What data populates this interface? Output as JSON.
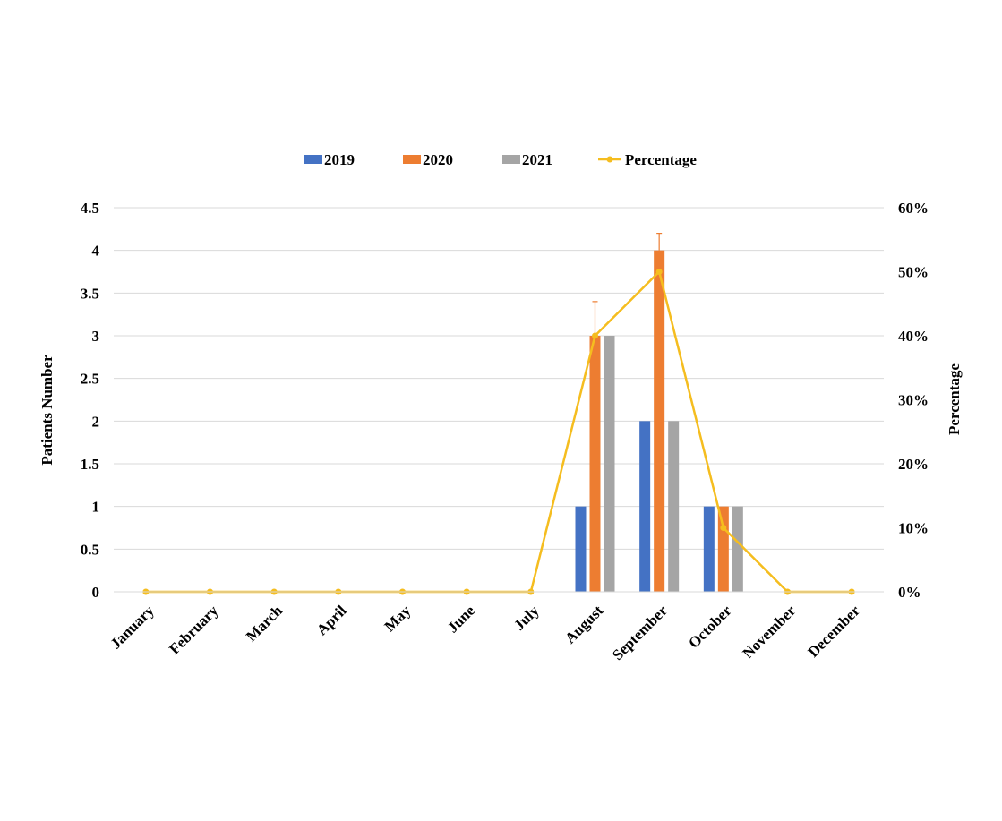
{
  "chart_data": {
    "type": "bar",
    "categories": [
      "January",
      "February",
      "March",
      "April",
      "May",
      "June",
      "July",
      "August",
      "September",
      "October",
      "November",
      "December"
    ],
    "series": [
      {
        "name": "2019",
        "type": "bar",
        "color": "#4472C4",
        "values": [
          0,
          0,
          0,
          0,
          0,
          0,
          0,
          1,
          2,
          1,
          0,
          0
        ]
      },
      {
        "name": "2020",
        "type": "bar",
        "color": "#ED7D31",
        "values": [
          0,
          0,
          0,
          0,
          0,
          0,
          0,
          3,
          4,
          1,
          0,
          0
        ],
        "error_plus": [
          0,
          0,
          0,
          0,
          0,
          0,
          0,
          0.4,
          0.2,
          0,
          0,
          0
        ]
      },
      {
        "name": "2021",
        "type": "bar",
        "color": "#A5A5A5",
        "values": [
          0,
          0,
          0,
          0,
          0,
          0,
          0,
          3,
          2,
          1,
          0,
          0
        ]
      },
      {
        "name": "Percentage",
        "type": "line",
        "axis": "right",
        "color": "#F5BD1F",
        "values": [
          0,
          0,
          0,
          0,
          0,
          0,
          0,
          40,
          50,
          10,
          0,
          0
        ]
      }
    ],
    "ylabel": "Patients Number",
    "y2label": "Percentage",
    "ylim": [
      0,
      4.5
    ],
    "y2lim": [
      0,
      60
    ],
    "yticks": [
      "0",
      "0.5",
      "1",
      "1.5",
      "2",
      "2.5",
      "3",
      "3.5",
      "4",
      "4.5"
    ],
    "y2ticks": [
      "0%",
      "10%",
      "20%",
      "30%",
      "40%",
      "50%",
      "60%"
    ],
    "grid": true,
    "legend": "top-center"
  }
}
